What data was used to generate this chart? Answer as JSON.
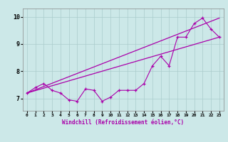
{
  "xlabel": "Windchill (Refroidissement éolien,°C)",
  "bg_color": "#cce8e8",
  "line_color": "#aa00aa",
  "x_data": [
    0,
    1,
    2,
    3,
    4,
    5,
    6,
    7,
    8,
    9,
    10,
    11,
    12,
    13,
    14,
    15,
    16,
    17,
    18,
    19,
    20,
    21,
    22,
    23
  ],
  "y_main": [
    7.2,
    7.4,
    7.55,
    7.3,
    7.2,
    6.95,
    6.9,
    7.35,
    7.3,
    6.9,
    7.05,
    7.3,
    7.3,
    7.3,
    7.55,
    8.2,
    8.55,
    8.2,
    9.25,
    9.25,
    9.75,
    9.95,
    9.55,
    9.25
  ],
  "line1_x": [
    0,
    23
  ],
  "line1_y": [
    7.2,
    9.25
  ],
  "line2_x": [
    0,
    23
  ],
  "line2_y": [
    7.2,
    9.95
  ],
  "xlim": [
    -0.5,
    23.5
  ],
  "ylim": [
    6.55,
    10.3
  ],
  "yticks": [
    7,
    8,
    9,
    10
  ],
  "xticks": [
    0,
    1,
    2,
    3,
    4,
    5,
    6,
    7,
    8,
    9,
    10,
    11,
    12,
    13,
    14,
    15,
    16,
    17,
    18,
    19,
    20,
    21,
    22,
    23
  ]
}
